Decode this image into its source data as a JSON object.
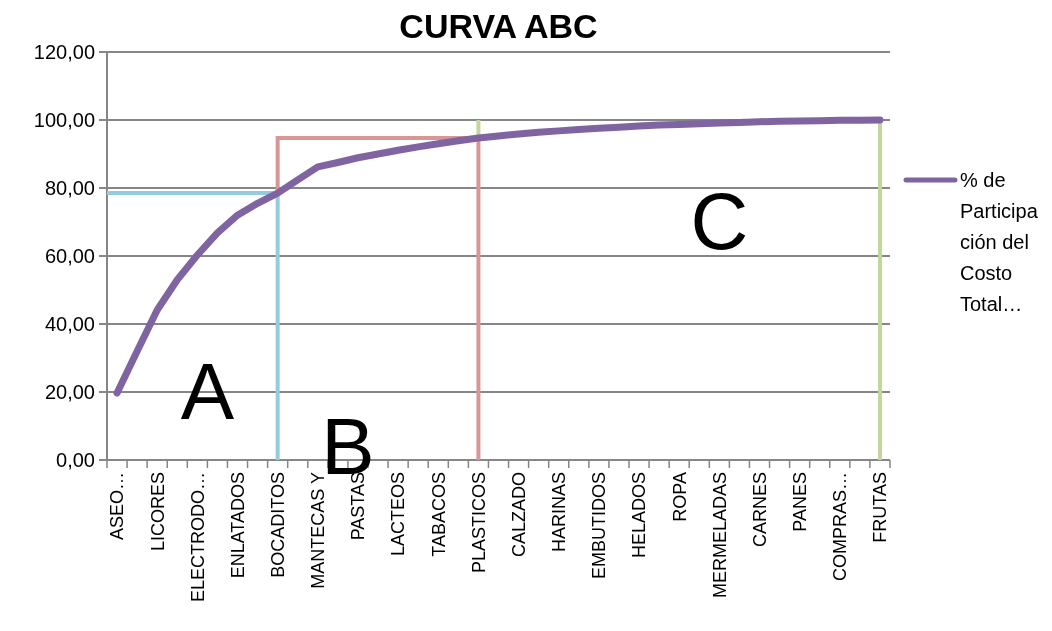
{
  "chart_data": {
    "type": "line",
    "title": "CURVA ABC",
    "categories": [
      "ASEO…",
      null,
      "LICORES",
      null,
      "ELECTRODO…",
      null,
      "ENLATADOS",
      null,
      "BOCADITOS",
      null,
      "MANTECAS Y",
      null,
      "PASTAS",
      null,
      "LACTEOS",
      null,
      "TABACOS",
      null,
      "PLASTICOS",
      null,
      "CALZADO",
      null,
      "HARINAS",
      null,
      "EMBUTIDOS",
      null,
      "HELADOS",
      null,
      "ROPA",
      null,
      "MERMELADAS",
      null,
      "CARNES",
      null,
      "PANES",
      null,
      "COMPRAS…",
      null,
      "FRUTAS"
    ],
    "series": [
      {
        "name": "% de Participación del Costo Total…",
        "color": "#8064a2",
        "values": [
          19.7,
          32,
          44.1,
          53,
          60.3,
          66.8,
          72,
          75.5,
          78.5,
          82.4,
          86.2,
          87.5,
          88.9,
          90,
          91.1,
          92.1,
          93,
          93.9,
          94.7,
          95.3,
          95.9,
          96.4,
          96.8,
          97.2,
          97.6,
          97.9,
          98.2,
          98.5,
          98.7,
          98.9,
          99.1,
          99.3,
          99.5,
          99.6,
          99.7,
          99.8,
          99.9,
          99.9,
          100
        ]
      }
    ],
    "ylim": [
      0,
      120
    ],
    "yticks": [
      {
        "value": 0,
        "label": "0,00"
      },
      {
        "value": 20,
        "label": "20,00"
      },
      {
        "value": 40,
        "label": "40,00"
      },
      {
        "value": 60,
        "label": "60,00"
      },
      {
        "value": 80,
        "label": "80,00"
      },
      {
        "value": 100,
        "label": "100,00"
      },
      {
        "value": 120,
        "label": "120,00"
      }
    ],
    "annotations": [
      "A",
      "B",
      "C"
    ],
    "ref_lines": [
      {
        "axis": "x",
        "value": "FRUTAS",
        "color": "#c3d69b"
      }
    ],
    "grid": "y",
    "legend": "right",
    "marker": "none",
    "line_style": "solid"
  }
}
